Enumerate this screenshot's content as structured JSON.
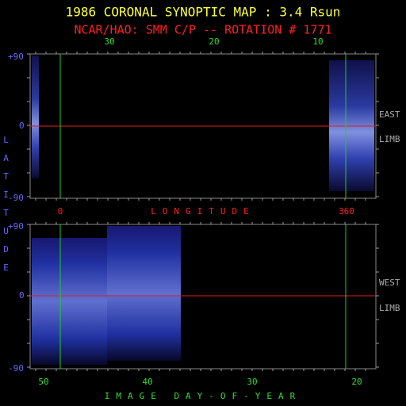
{
  "header": {
    "title": "1986 CORONAL SYNOPTIC MAP : 3.4 Rsun",
    "subtitle": "NCAR/HAO: SMM C/P -- ROTATION # 1771"
  },
  "top_axis": [
    "30",
    "20",
    "10"
  ],
  "latitude_ticks": [
    "+90",
    "0",
    "-90"
  ],
  "latitude_label": "LATITUDE",
  "longitude": {
    "start": "0",
    "end": "360",
    "label": "LONGITUDE"
  },
  "east_panel": [
    "EAST",
    "LIMB"
  ],
  "west_panel": [
    "WEST",
    "LIMB"
  ],
  "bottom_axis": [
    "50",
    "40",
    "30",
    "20"
  ],
  "bottom_label": "IMAGE DAY-OF-YEAR"
}
